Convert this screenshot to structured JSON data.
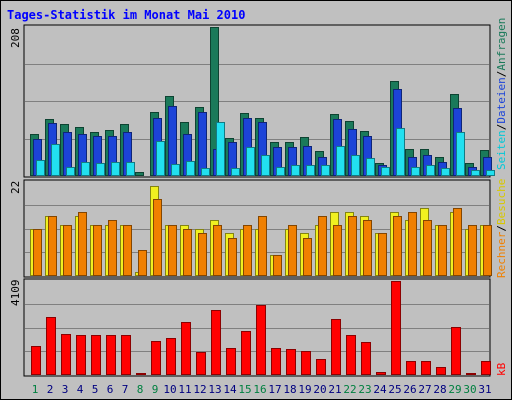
{
  "chart_data": [
    {
      "type": "bar",
      "panel": "requests",
      "title": "Tages-Statistik im Monat Mai 2010",
      "ylabel_max": "208",
      "categories": [
        "1",
        "2",
        "3",
        "4",
        "5",
        "6",
        "7",
        "8",
        "9",
        "10",
        "11",
        "12",
        "13",
        "14",
        "15",
        "16",
        "17",
        "18",
        "19",
        "20",
        "21",
        "22",
        "23",
        "24",
        "25",
        "26",
        "27",
        "28",
        "29",
        "30",
        "31"
      ],
      "ylim": [
        0,
        208
      ],
      "grid": true,
      "series": [
        {
          "name": "Anfragen",
          "color": "#1a7a5a",
          "values": [
            59,
            80,
            72,
            69,
            61,
            64,
            72,
            5,
            90,
            111,
            76,
            97,
            208,
            53,
            88,
            81,
            47,
            47,
            54,
            35,
            87,
            77,
            63,
            18,
            132,
            38,
            38,
            26,
            115,
            18,
            36
          ]
        },
        {
          "name": "Dateien",
          "color": "#1c44d8",
          "values": [
            52,
            74,
            61,
            59,
            56,
            56,
            61,
            2,
            81,
            98,
            58,
            90,
            38,
            48,
            81,
            75,
            40,
            40,
            42,
            26,
            79,
            66,
            56,
            16,
            122,
            26,
            30,
            20,
            95,
            13,
            27
          ]
        },
        {
          "name": "Seiten",
          "color": "#22e0f0",
          "values": [
            22,
            44,
            13,
            20,
            18,
            20,
            20,
            1,
            49,
            17,
            21,
            11,
            76,
            11,
            41,
            30,
            12,
            16,
            16,
            15,
            42,
            30,
            25,
            12,
            67,
            13,
            15,
            11,
            61,
            8,
            8
          ]
        }
      ]
    },
    {
      "type": "bar",
      "panel": "visits",
      "ylabel_max": "22",
      "categories": [
        "1",
        "2",
        "3",
        "4",
        "5",
        "6",
        "7",
        "8",
        "9",
        "10",
        "11",
        "12",
        "13",
        "14",
        "15",
        "16",
        "17",
        "18",
        "19",
        "20",
        "21",
        "22",
        "23",
        "24",
        "25",
        "26",
        "27",
        "28",
        "29",
        "30",
        "31"
      ],
      "ylim": [
        0,
        22
      ],
      "grid": true,
      "series": [
        {
          "name": "Besuche",
          "color": "#f0f020",
          "values": [
            11,
            14,
            12,
            14,
            12,
            12,
            12,
            1,
            21,
            12,
            12,
            11,
            13,
            10,
            11,
            11,
            5,
            11,
            10,
            12,
            15,
            15,
            14,
            10,
            15,
            13,
            16,
            12,
            15,
            11,
            12
          ]
        },
        {
          "name": "Rechner",
          "color": "#f08000",
          "values": [
            11,
            14,
            12,
            15,
            12,
            13,
            12,
            6,
            18,
            12,
            11,
            10,
            12,
            9,
            12,
            14,
            5,
            12,
            9,
            14,
            12,
            14,
            13,
            10,
            14,
            15,
            13,
            12,
            16,
            12,
            12
          ]
        }
      ]
    },
    {
      "type": "bar",
      "panel": "traffic",
      "ylabel_max": "4109",
      "categories": [
        "1",
        "2",
        "3",
        "4",
        "5",
        "6",
        "7",
        "8",
        "9",
        "10",
        "11",
        "12",
        "13",
        "14",
        "15",
        "16",
        "17",
        "18",
        "19",
        "20",
        "21",
        "22",
        "23",
        "24",
        "25",
        "26",
        "27",
        "28",
        "29",
        "30",
        "31"
      ],
      "ylim": [
        0,
        4109
      ],
      "grid": true,
      "series": [
        {
          "name": "kB",
          "color": "#ff0000",
          "values": [
            1253,
            2537,
            1779,
            1730,
            1730,
            1764,
            1730,
            73,
            1506,
            1612,
            2310,
            1003,
            2820,
            1193,
            1924,
            3074,
            1193,
            1138,
            1031,
            695,
            2448,
            1758,
            1444,
            132,
            4109,
            624,
            624,
            347,
            2102,
            100,
            633
          ]
        }
      ]
    }
  ],
  "labels": {
    "title": "Tages-Statistik im Monat Mai 2010",
    "right_top": [
      "Anfragen",
      "/",
      "Dateien",
      "/",
      "Seiten"
    ],
    "right_mid": [
      "Besuche",
      "/",
      "Rechner"
    ],
    "right_bottom": "kB",
    "weekend_days": [
      "1",
      "8",
      "9",
      "15",
      "16",
      "22",
      "23",
      "29",
      "30"
    ]
  },
  "colors": {
    "background": "#c0c0c0",
    "title": "#0000ff",
    "weekday": "#000080",
    "weekend": "#008040",
    "grid": "#808080"
  }
}
